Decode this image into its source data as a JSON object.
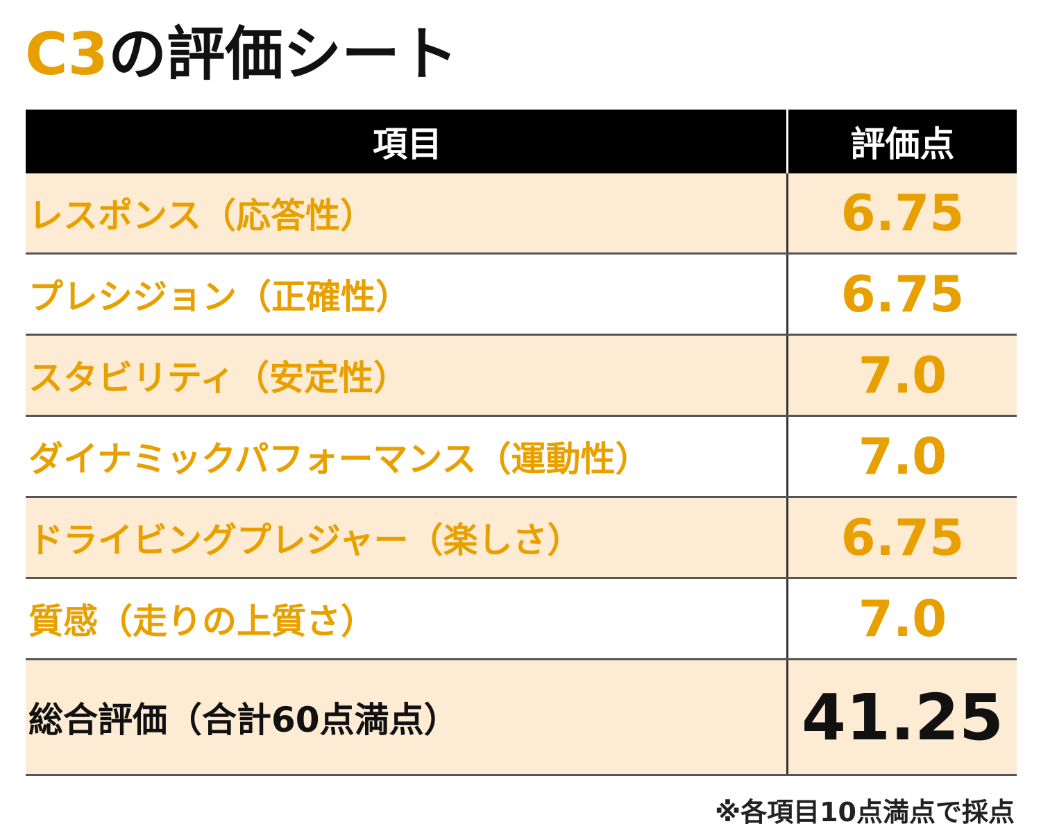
{
  "title": {
    "model": "C3",
    "text": "の評価シート"
  },
  "table": {
    "header": [
      "項目",
      "評価点"
    ],
    "rows": [
      [
        "レスポンス（応答性）",
        "6.75"
      ],
      [
        "プレシジョン（正確性）",
        "6.75"
      ],
      [
        "スタビリティ（安定性）",
        "7.0"
      ],
      [
        "ダイナミックパフォーマンス（運動性）",
        "7.0"
      ],
      [
        "ドライビングプレジャー（楽しさ）",
        "6.75"
      ],
      [
        "質感（走りの上質さ）",
        "7.0"
      ]
    ],
    "total": [
      "総合評価（合計60点満点）",
      "41.25"
    ]
  },
  "note": "※各項目10点満点で採点"
}
